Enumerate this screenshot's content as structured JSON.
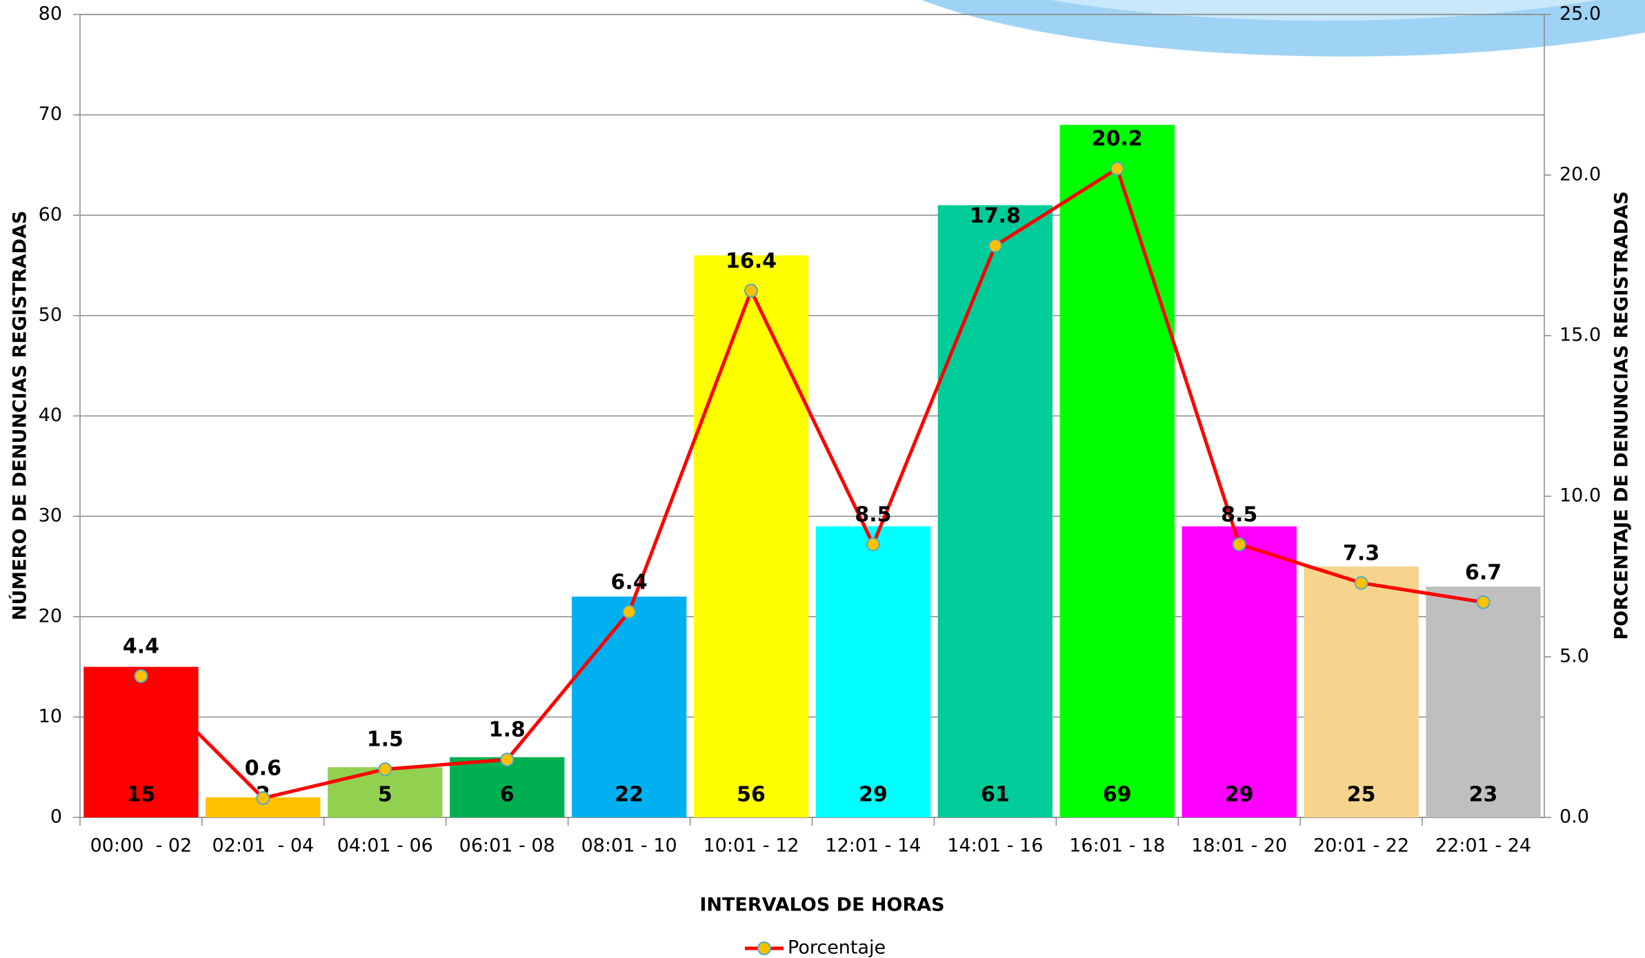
{
  "chart_data": {
    "type": "bar",
    "categories": [
      "00:00  - 02",
      "02:01  - 04",
      "04:01 - 06",
      "06:01 - 08",
      "08:01 - 10",
      "10:01 - 12",
      "12:01 - 14",
      "14:01 - 16",
      "16:01 - 18",
      "18:01 - 20",
      "20:01 - 22",
      "22:01 - 24"
    ],
    "series": [
      {
        "colors": [
          "#ff0000",
          "#ffc000",
          "#92d050",
          "#00b050",
          "#00b0f0",
          "#ffff00",
          "#00ffff",
          "#00cc99",
          "#00ff00",
          "#ff00ff",
          "#f7d48d",
          "#bfbfbf"
        ],
        "values": [
          15,
          2,
          5,
          6,
          22,
          56,
          29,
          61,
          69,
          29,
          25,
          23
        ]
      },
      {
        "name": "Porcentaje",
        "type": "line",
        "axis": "y2",
        "color": "#ff0000",
        "marker_color": "#ffc000",
        "values": [
          4.4,
          0.6,
          1.5,
          1.8,
          6.4,
          16.4,
          8.5,
          17.8,
          20.2,
          8.5,
          7.3,
          6.7
        ]
      }
    ],
    "xlabel": "INTERVALOS DE HORAS",
    "ylabel": "NÚMERO DE DENUNCIAS REGISTRADAS",
    "y2label": "PORCENTAJE DE DENUNCIAS REGISTRADAS",
    "ylim": [
      0,
      80
    ],
    "yticks": [
      0,
      10,
      20,
      30,
      40,
      50,
      60,
      70,
      80
    ],
    "y2lim": [
      0,
      25
    ],
    "y2ticks": [
      {
        "value": 0,
        "label": "0.0"
      },
      {
        "value": 5,
        "label": "5.0"
      },
      {
        "value": 10,
        "label": "10.0"
      },
      {
        "value": 15,
        "label": "15.0"
      },
      {
        "value": 20,
        "label": "20.0"
      },
      {
        "value": 25,
        "label": "25.0"
      }
    ],
    "grid": true,
    "legend": "bottom"
  }
}
